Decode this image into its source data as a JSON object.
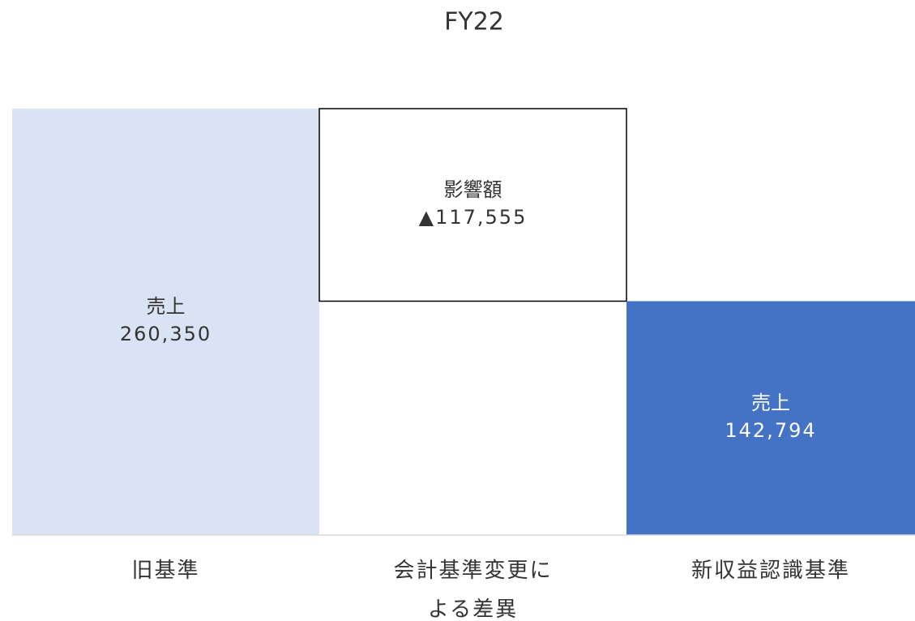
{
  "chart_data": {
    "type": "waterfall",
    "title": "FY22",
    "categories": [
      "旧基準",
      "会計基準変更による差異",
      "新収益認識基準"
    ],
    "values": [
      260350,
      -117555,
      142794
    ],
    "value_labels": [
      "260,350",
      "▲117,555",
      "142,794"
    ],
    "segment_labels": [
      "売上",
      "影響額",
      "売上"
    ],
    "is_total": [
      true,
      false,
      true
    ],
    "colors": [
      "#dae3f3",
      "#ffffff",
      "#4472c4"
    ],
    "label_colors": [
      "#333333",
      "#333333",
      "#ffffff"
    ]
  }
}
